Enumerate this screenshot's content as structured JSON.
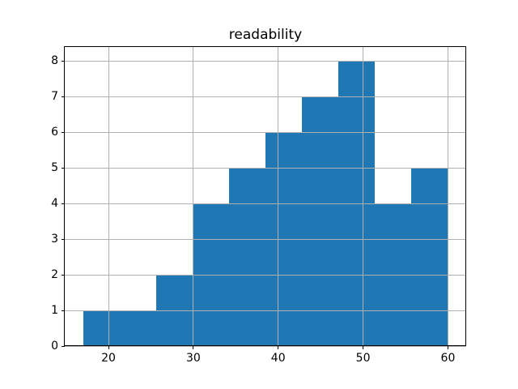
{
  "chart_data": {
    "type": "bar",
    "subtype": "histogram",
    "title": "readability",
    "bin_edges": [
      17.0,
      21.3,
      25.6,
      29.9,
      34.2,
      38.5,
      42.8,
      47.1,
      51.4,
      55.7,
      60.0
    ],
    "counts": [
      1,
      1,
      2,
      4,
      5,
      6,
      7,
      8,
      4,
      5
    ],
    "x_ticks": [
      20,
      30,
      40,
      50,
      60
    ],
    "y_ticks": [
      0,
      1,
      2,
      3,
      4,
      5,
      6,
      7,
      8
    ],
    "xlim": [
      14.85,
      62.15
    ],
    "ylim": [
      0,
      8.4
    ],
    "xlabel": "",
    "ylabel": "",
    "grid": true,
    "grid_over_bars": true,
    "legend": null,
    "colors": {
      "bar": "#1f77b4",
      "grid": "#b0b0b0",
      "spine": "#000000",
      "text": "#000000",
      "background": "#ffffff"
    }
  }
}
